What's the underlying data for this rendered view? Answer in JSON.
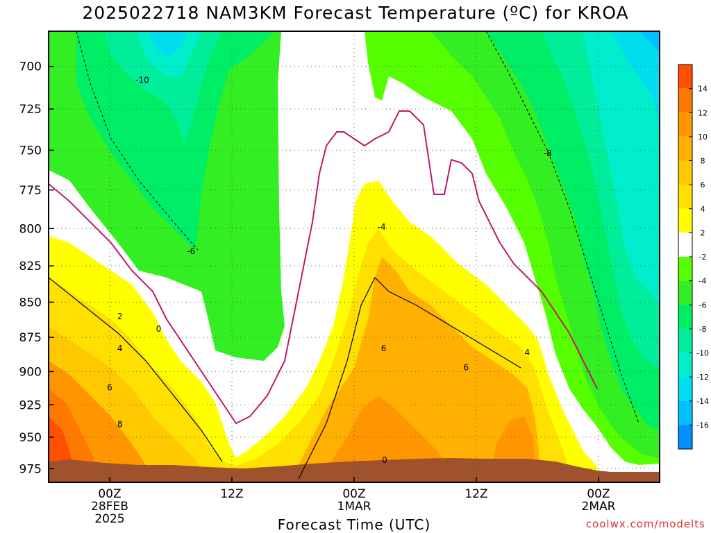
{
  "chart_data": {
    "type": "contour",
    "title": "2025022718 NAM3KM Forecast Temperature (ºC) for KROA",
    "xlabel": "Forecast Time (UTC)",
    "ylabel": "",
    "y_scale": "pressure (inverted, log)",
    "ylim": [
      986,
      680
    ],
    "y_ticks": [
      700,
      725,
      750,
      775,
      800,
      825,
      850,
      875,
      900,
      925,
      950,
      975
    ],
    "x_ticks": [
      {
        "hour": 6,
        "lines": [
          "00Z",
          "28FEB",
          "2025"
        ]
      },
      {
        "hour": 18,
        "lines": [
          "12Z"
        ]
      },
      {
        "hour": 30,
        "lines": [
          "00Z",
          "1MAR"
        ]
      },
      {
        "hour": 42,
        "lines": [
          "12Z"
        ]
      },
      {
        "hour": 54,
        "lines": [
          "00Z",
          "2MAR"
        ]
      }
    ],
    "xlim": [
      0,
      60
    ],
    "colorbar": {
      "labels": [
        "14",
        "12",
        "10",
        "8",
        "6",
        "4",
        "2",
        "-2",
        "-4",
        "-6",
        "-8",
        "-10",
        "-12",
        "-14",
        "-16"
      ],
      "colors": [
        "#ff5000",
        "#ff7800",
        "#ff9600",
        "#ffb000",
        "#ffc800",
        "#ffe000",
        "#ffff00",
        "#ffffff",
        "#55ff00",
        "#33ee22",
        "#00ee66",
        "#00ee99",
        "#00eecc",
        "#00ddee",
        "#00c0ff",
        "#0090ff"
      ]
    },
    "contour_labels": [
      {
        "text": "-10",
        "hour": 9.2,
        "p": 708
      },
      {
        "text": "-6",
        "hour": 14.0,
        "p": 815
      },
      {
        "text": "2",
        "hour": 7.0,
        "p": 860
      },
      {
        "text": "0",
        "hour": 10.8,
        "p": 869
      },
      {
        "text": "4",
        "hour": 7.0,
        "p": 883
      },
      {
        "text": "6",
        "hour": 6.0,
        "p": 912
      },
      {
        "text": "8",
        "hour": 7.0,
        "p": 940
      },
      {
        "text": "-4",
        "hour": 32.7,
        "p": 799
      },
      {
        "text": "6",
        "hour": 32.9,
        "p": 883
      },
      {
        "text": "6",
        "hour": 41.0,
        "p": 897
      },
      {
        "text": "4",
        "hour": 47.0,
        "p": 886
      },
      {
        "text": "-8",
        "hour": 49.0,
        "p": 752
      },
      {
        "text": "0",
        "hour": 33.0,
        "p": 968
      }
    ],
    "terrain_surface_pressure": {
      "hours": [
        0,
        4,
        8,
        12,
        16,
        20,
        24,
        28,
        32,
        36,
        40,
        44,
        48,
        50,
        52,
        54,
        56,
        58,
        60
      ],
      "p": [
        968,
        967,
        970,
        971,
        971,
        973,
        973,
        971,
        969,
        968,
        967,
        967,
        967,
        969,
        972,
        975,
        978,
        978,
        978
      ]
    }
  },
  "credit": "coolwx.com/modelts"
}
